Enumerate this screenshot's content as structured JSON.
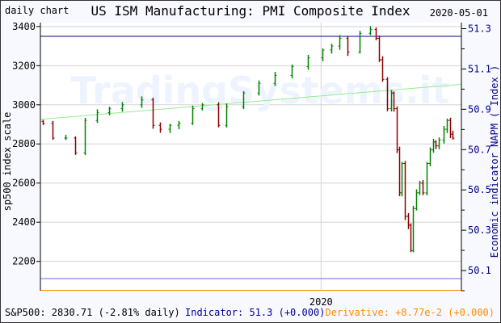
{
  "header": {
    "left_label": "daily chart",
    "title": "US ISM Manufacturing: PMI Composite Index",
    "date": "2020-05-01"
  },
  "watermark": "TradingSystems.it",
  "footer": {
    "sp500": "S&P500: 2830.71 (-2.81% daily)",
    "indicator": "Indicator: 51.3 (+0.000)",
    "derivative": "Derivative: +8.77e-2 (+0.000)"
  },
  "colors": {
    "background": "#f8f8ff",
    "plot": "#ffffff",
    "up_bar": "#008000",
    "down_bar": "#8b0000",
    "indicator": "#00008b",
    "derivative": "#ff8c00",
    "trend": "#90ee90",
    "grid": "#d3d3d3"
  },
  "chart_data": {
    "type": "ohlc",
    "title": "US ISM Manufacturing: PMI Composite Index",
    "ylabel": "sp500 index scale",
    "y2label": "Economic indicator NAPM ( Index )",
    "xlim": [
      "2019-04-28",
      "2020-05-04"
    ],
    "ylim": [
      2050,
      3420
    ],
    "y2lim": [
      50.0,
      51.33
    ],
    "yticks": [
      3400,
      3200,
      3000,
      2800,
      2600,
      2400,
      2200
    ],
    "y2ticks": [
      "51.3",
      "51.1",
      "50.9",
      "50.7",
      "50.5",
      "50.3",
      "50.1"
    ],
    "xticks": [
      {
        "date": "2020-01-01",
        "label": "2020"
      }
    ],
    "grid": true,
    "trendline": {
      "start": [
        "2019-04-28",
        2926
      ],
      "end": [
        "2020-05-04",
        3105
      ]
    },
    "series": [
      {
        "dates": [
          "2019-04-30",
          "2019-05-09",
          "2019-05-20",
          "2019-05-29",
          "2019-06-06",
          "2019-06-17",
          "2019-06-28",
          "2019-07-09",
          "2019-07-26",
          "2019-08-05",
          "2019-08-12",
          "2019-08-20",
          "2019-08-28",
          "2019-09-09",
          "2019-09-18",
          "2019-10-02",
          "2019-10-09",
          "2019-10-24",
          "2019-11-07",
          "2019-11-21",
          "2019-12-06",
          "2019-12-20",
          "2020-01-02",
          "2020-01-10",
          "2020-01-17",
          "2020-01-24",
          "2020-02-04",
          "2020-02-13",
          "2020-02-18",
          "2020-02-21",
          "2020-02-24",
          "2020-02-28",
          "2020-03-03",
          "2020-03-05",
          "2020-03-08",
          "2020-03-10",
          "2020-03-12",
          "2020-03-15",
          "2020-03-18",
          "2020-03-20",
          "2020-03-22",
          "2020-03-25",
          "2020-03-28",
          "2020-03-31",
          "2020-04-03",
          "2020-04-06",
          "2020-04-09",
          "2020-04-11",
          "2020-04-14",
          "2020-04-18",
          "2020-04-21",
          "2020-04-24",
          "2020-04-26"
        ],
        "close": [
          2905,
          2830,
          2830,
          2755,
          2920,
          2960,
          2980,
          3000,
          3025,
          2895,
          2875,
          2895,
          2905,
          2980,
          3000,
          2895,
          2990,
          3060,
          3110,
          3150,
          3195,
          3240,
          3280,
          3300,
          3340,
          3270,
          3365,
          3385,
          3340,
          3230,
          3130,
          2980,
          3060,
          2980,
          2770,
          2550,
          2700,
          2430,
          2385,
          2255,
          2470,
          2550,
          2600,
          2550,
          2700,
          2770,
          2810,
          2790,
          2820,
          2875,
          2920,
          2850,
          2830
        ]
      }
    ]
  }
}
